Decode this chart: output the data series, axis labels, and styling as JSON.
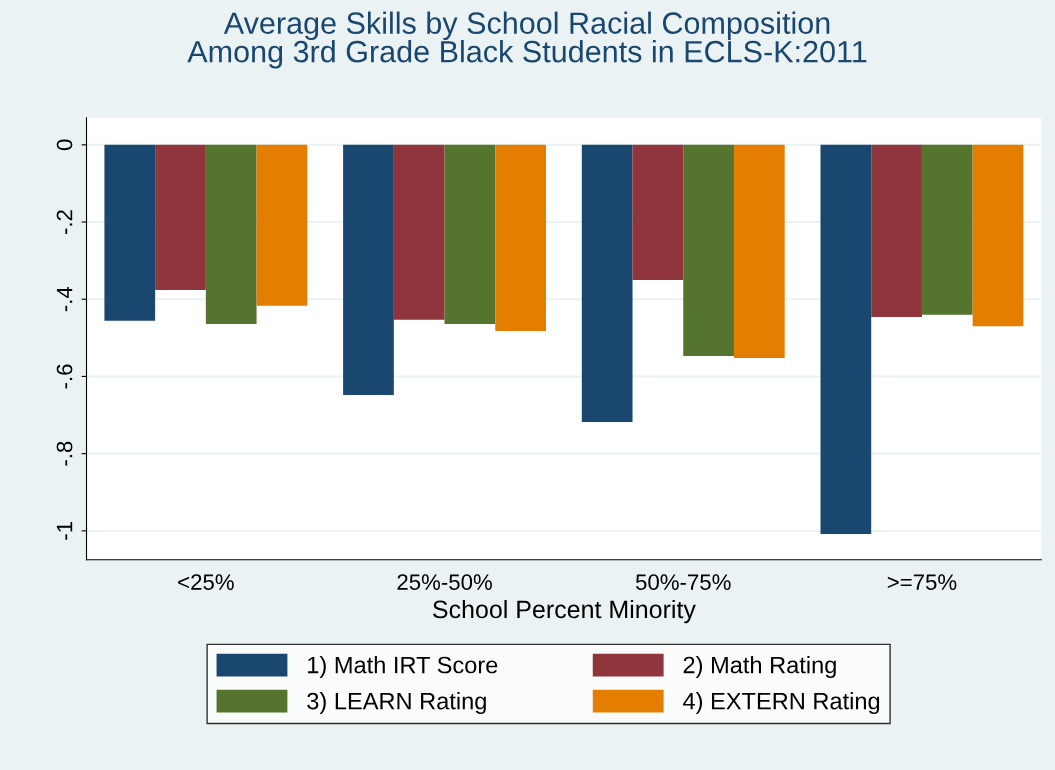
{
  "chart_data": {
    "type": "bar",
    "title": "Average Skills by School Racial Composition\nAmong 3rd Grade Black Students in ECLS-K:2011",
    "xlabel": "School Percent Minority",
    "categories": [
      "<25%",
      "25%-50%",
      "50%-75%",
      ">=75%"
    ],
    "series": [
      {
        "name": "1) Math IRT Score",
        "color": "#1a476f",
        "values": [
          -0.456,
          -0.648,
          -0.718,
          -1.008
        ]
      },
      {
        "name": "2) Math Rating",
        "color": "#90353b",
        "values": [
          -0.376,
          -0.453,
          -0.35,
          -0.446
        ]
      },
      {
        "name": "3) LEARN Rating",
        "color": "#55752f",
        "values": [
          -0.464,
          -0.464,
          -0.547,
          -0.44
        ]
      },
      {
        "name": "4) EXTERN Rating",
        "color": "#e37e00",
        "values": [
          -0.417,
          -0.482,
          -0.552,
          -0.47
        ]
      }
    ],
    "ylim": [
      -1.075,
      0.07
    ],
    "yticks": [
      {
        "value": -1,
        "label": "-1"
      },
      {
        "value": -0.8,
        "label": "-.8"
      },
      {
        "value": -0.6,
        "label": "-.6"
      },
      {
        "value": -0.4,
        "label": "-.4"
      },
      {
        "value": -0.2,
        "label": "-.2"
      },
      {
        "value": 0,
        "label": "0"
      }
    ],
    "grid": "y",
    "legend": "bottom"
  }
}
